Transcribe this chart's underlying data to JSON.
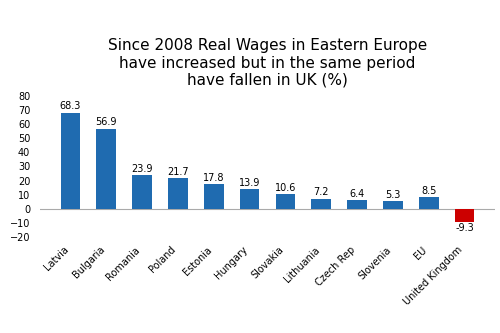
{
  "title": "Since 2008 Real Wages in Eastern Europe\nhave increased but in the same period\nhave fallen in UK (%)",
  "categories": [
    "Latvia",
    "Bulgaria",
    "Romania",
    "Poland",
    "Estonia",
    "Hungary",
    "Slovakia",
    "Lithuania",
    "Czech Rep",
    "Slovenia",
    "EU",
    "United Kingdom"
  ],
  "values": [
    68.3,
    56.9,
    23.9,
    21.7,
    17.8,
    13.9,
    10.6,
    7.2,
    6.4,
    5.3,
    8.5,
    -9.3
  ],
  "bar_colors": [
    "#1f6bb0",
    "#1f6bb0",
    "#1f6bb0",
    "#1f6bb0",
    "#1f6bb0",
    "#1f6bb0",
    "#1f6bb0",
    "#1f6bb0",
    "#1f6bb0",
    "#1f6bb0",
    "#1f6bb0",
    "#cc0000"
  ],
  "ylim": [
    -22,
    82
  ],
  "yticks": [
    -20,
    -10,
    0,
    10,
    20,
    30,
    40,
    50,
    60,
    70,
    80
  ],
  "title_fontsize": 11,
  "label_fontsize": 7,
  "tick_fontsize": 7,
  "background_color": "#ffffff"
}
